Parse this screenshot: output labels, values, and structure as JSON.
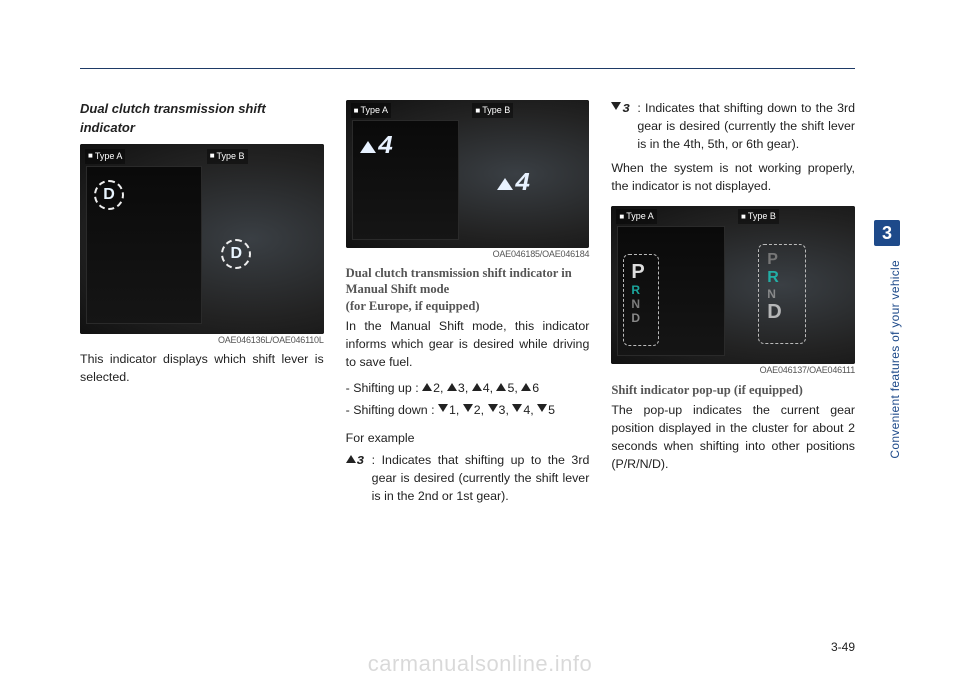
{
  "page": {
    "number": "3-49",
    "chapter_tab": "3",
    "side_label": "Convenient features of your vehicle"
  },
  "watermark": "carmanualsonline.info",
  "col1": {
    "heading": "Dual clutch transmission shift indicator",
    "fig": {
      "labelA": "Type A",
      "labelB": "Type B",
      "d_letter": "D",
      "code": "OAE046136L/OAE046110L"
    },
    "body": "This indicator displays which shift lever is selected."
  },
  "col2": {
    "fig": {
      "labelA": "Type A",
      "labelB": "Type B",
      "gear_num": "4",
      "code": "OAE046185/OAE046184"
    },
    "sub1": "Dual clutch transmission shift indicator in Manual Shift mode",
    "sub2": "(for Europe, if equipped)",
    "p1": "In the Manual Shift mode, this indicator informs which gear is desired while driving to save fuel.",
    "up_label": "- Shifting up :",
    "up_vals": [
      "2",
      "3",
      "4",
      "5",
      "6"
    ],
    "dn_label": "- Shifting down :",
    "dn_vals": [
      "1",
      "2",
      "3",
      "4",
      "5"
    ],
    "example_h": "For example",
    "ex_up_marker": "3",
    "ex_up": ": Indicates that shifting up to the 3rd gear is desired (currently the shift lever is in the 2nd or 1st gear)."
  },
  "col3": {
    "ex_dn_marker": "3",
    "ex_dn": ": Indicates that shifting down to the 3rd gear is desired (currently the shift lever is in the 4th, 5th, or 6th gear).",
    "p_not_working": "When the system is not working properly, the indicator is not displayed.",
    "fig": {
      "labelA": "Type A",
      "labelB": "Type B",
      "code": "OAE046137/OAE046111",
      "prnd": {
        "p": "P",
        "r": "R",
        "n": "N",
        "d": "D"
      }
    },
    "sub": "Shift indicator pop-up (if equipped)",
    "p2": "The pop-up indicates the current gear position displayed in the cluster for about 2 seconds when shifting into other positions (P/R/N/D)."
  },
  "colors": {
    "rule": "#1e3a66",
    "tab_bg": "#1e4a8a",
    "sub_gray": "#555555",
    "teal": "#1ecbc0"
  }
}
